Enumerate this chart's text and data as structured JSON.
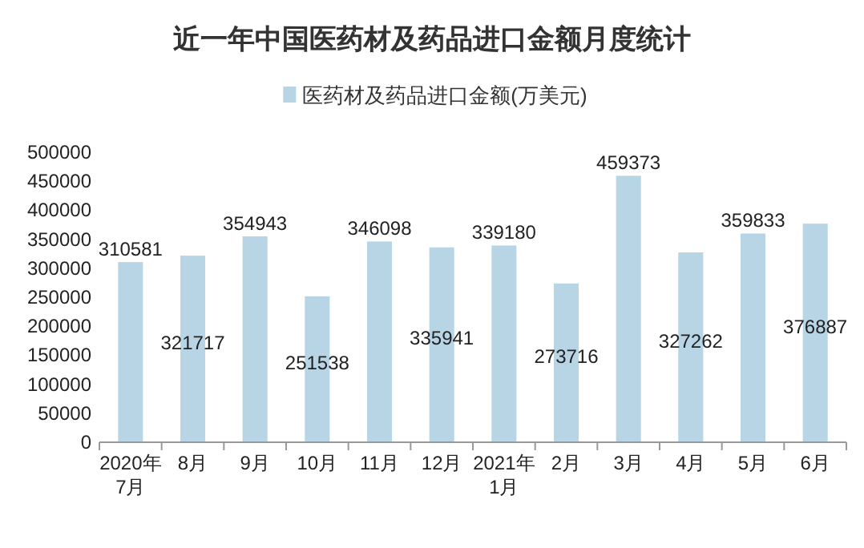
{
  "chart_data": {
    "type": "bar",
    "title": "近一年中国医药材及药品进口金额月度统计",
    "categories": [
      "2020年\n7月",
      "8月",
      "9月",
      "10月",
      "11月",
      "12月",
      "2021年\n1月",
      "2月",
      "3月",
      "4月",
      "5月",
      "6月"
    ],
    "series": [
      {
        "name": "医药材及药品进口金额(万美元)",
        "color": "#b8d5e5",
        "values": [
          310581,
          321717,
          354943,
          251538,
          346098,
          335941,
          339180,
          273716,
          459373,
          327262,
          359833,
          376887
        ]
      }
    ],
    "ylim": [
      0,
      500000
    ],
    "yticks": [
      0,
      50000,
      100000,
      150000,
      200000,
      250000,
      300000,
      350000,
      400000,
      450000,
      500000
    ],
    "data_labels": true,
    "legend": "top"
  }
}
